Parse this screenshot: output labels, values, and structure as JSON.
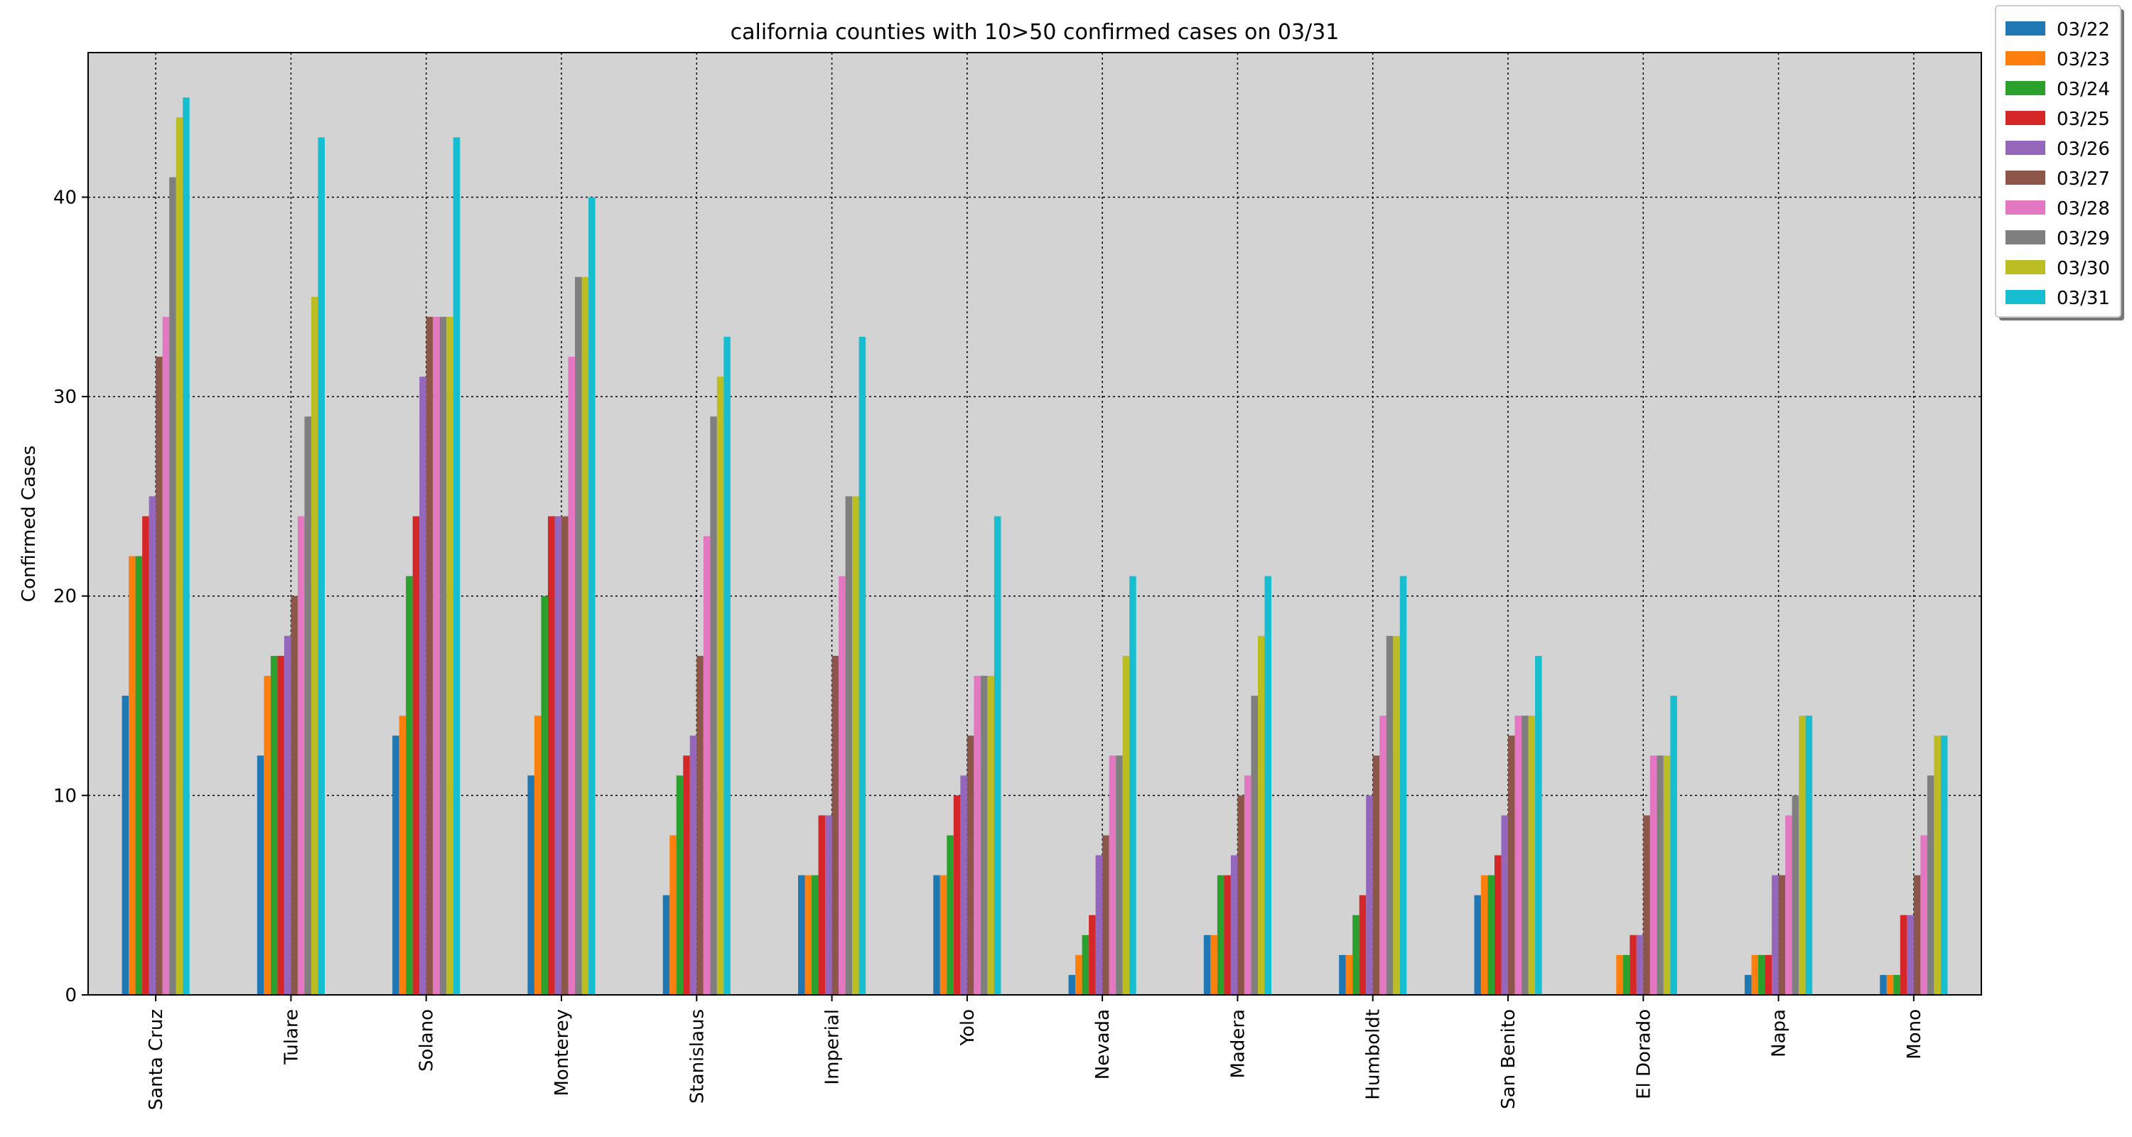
{
  "chart_data": {
    "type": "bar",
    "title": "california counties with 10>50 confirmed cases on 03/31",
    "xlabel": "",
    "ylabel": "Confirmed Cases",
    "ylim": [
      0,
      47.25
    ],
    "yticks": [
      0,
      10,
      20,
      30,
      40
    ],
    "grid": true,
    "legend_position": "outside-top-right",
    "categories": [
      "Santa Cruz",
      "Tulare",
      "Solano",
      "Monterey",
      "Stanislaus",
      "Imperial",
      "Yolo",
      "Nevada",
      "Madera",
      "Humboldt",
      "San Benito",
      "El Dorado",
      "Napa",
      "Mono"
    ],
    "series": [
      {
        "name": "03/22",
        "color": "#1f77b4",
        "values": [
          15,
          12,
          13,
          11,
          5,
          6,
          6,
          1,
          3,
          2,
          5,
          0,
          1,
          1
        ]
      },
      {
        "name": "03/23",
        "color": "#ff7f0e",
        "values": [
          22,
          16,
          14,
          14,
          8,
          6,
          6,
          2,
          3,
          2,
          6,
          2,
          2,
          1
        ]
      },
      {
        "name": "03/24",
        "color": "#2ca02c",
        "values": [
          22,
          17,
          21,
          20,
          11,
          6,
          8,
          3,
          6,
          4,
          6,
          2,
          2,
          1
        ]
      },
      {
        "name": "03/25",
        "color": "#d62728",
        "values": [
          24,
          17,
          24,
          24,
          12,
          9,
          10,
          4,
          6,
          5,
          7,
          3,
          2,
          4
        ]
      },
      {
        "name": "03/26",
        "color": "#9467bd",
        "values": [
          25,
          18,
          31,
          24,
          13,
          9,
          11,
          7,
          7,
          10,
          9,
          3,
          6,
          4
        ]
      },
      {
        "name": "03/27",
        "color": "#8c564b",
        "values": [
          32,
          20,
          34,
          24,
          17,
          17,
          13,
          8,
          10,
          12,
          13,
          9,
          6,
          6
        ]
      },
      {
        "name": "03/28",
        "color": "#e377c2",
        "values": [
          34,
          24,
          34,
          32,
          23,
          21,
          16,
          12,
          11,
          14,
          14,
          12,
          9,
          8
        ]
      },
      {
        "name": "03/29",
        "color": "#7f7f7f",
        "values": [
          41,
          29,
          34,
          36,
          29,
          25,
          16,
          12,
          15,
          18,
          14,
          12,
          10,
          11
        ]
      },
      {
        "name": "03/30",
        "color": "#bcbd22",
        "values": [
          44,
          35,
          34,
          36,
          31,
          25,
          16,
          17,
          18,
          18,
          14,
          12,
          14,
          13
        ]
      },
      {
        "name": "03/31",
        "color": "#17becf",
        "values": [
          45,
          43,
          43,
          40,
          33,
          33,
          24,
          21,
          21,
          21,
          17,
          15,
          14,
          13
        ]
      }
    ]
  },
  "colors": {
    "plot_background": "#d3d3d3",
    "grid": "#000000"
  }
}
